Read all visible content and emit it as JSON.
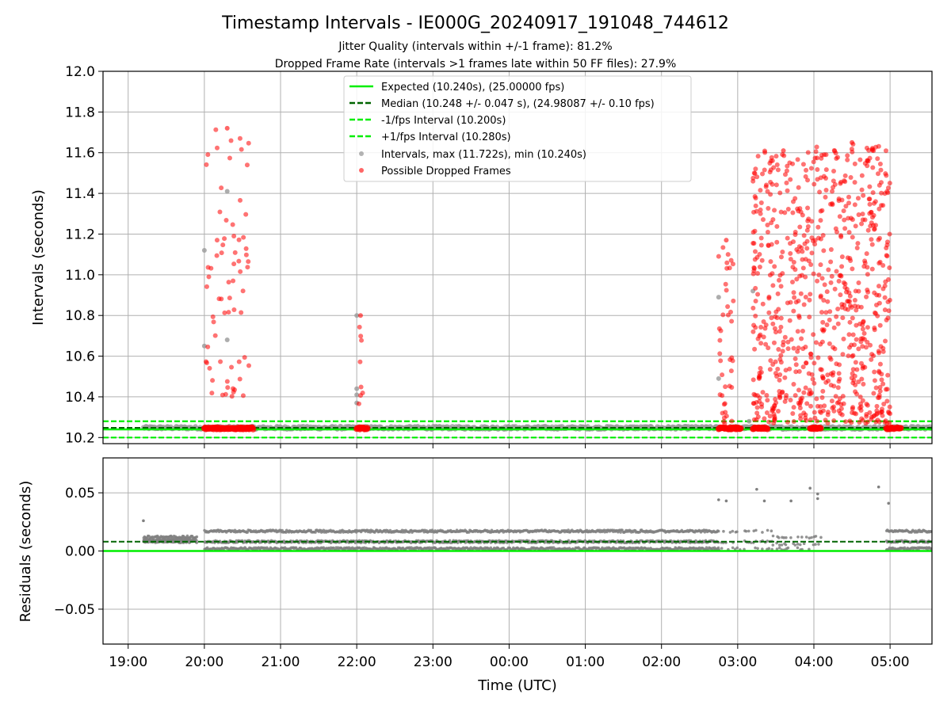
{
  "chart_data": [
    {
      "type": "scatter",
      "title": "Timestamp Intervals - IE000G_20240917_191048_744612",
      "subtitle_lines": [
        "Jitter Quality (intervals within +/-1 frame): 81.2%",
        "Dropped Frame Rate (intervals >1 frames late within 50 FF files): 27.9%"
      ],
      "ylabel": "Intervals (seconds)",
      "ylim": [
        10.17,
        12.0
      ],
      "yticks": [
        "10.2",
        "10.4",
        "10.6",
        "10.8",
        "11.0",
        "11.2",
        "11.4",
        "11.6",
        "11.8",
        "12.0"
      ],
      "grid": true,
      "legend_position": "top-center",
      "legend": [
        "Expected (10.240s), (25.00000 fps)",
        "Median (10.248 +/- 0.047 s), (24.98087 +/- 0.10 fps)",
        "-1/fps Interval (10.200s)",
        "+1/fps Interval (10.280s)",
        "Intervals, max (11.722s), min (10.240s)",
        "Possible Dropped Frames"
      ],
      "reference_lines": {
        "expected": 10.24,
        "median": 10.248,
        "minus_one_frame": 10.2,
        "plus_one_frame": 10.28
      },
      "colors": {
        "expected": "#00ee00",
        "median": "#006400",
        "bounds": "#00ee00",
        "intervals": "#999999",
        "dropped": "#ff0000"
      },
      "dropped_clusters": [
        {
          "x_start": 20.0,
          "x_end": 20.6,
          "y_min": 10.4,
          "y_max": 11.72,
          "count": 70
        },
        {
          "x_start": 22.0,
          "x_end": 22.1,
          "y_min": 10.34,
          "y_max": 10.8,
          "count": 8
        },
        {
          "x_start": 26.75,
          "x_end": 26.95,
          "y_min": 10.27,
          "y_max": 11.17,
          "count": 40
        },
        {
          "x_start": 27.2,
          "x_end": 28.0,
          "y_min": 10.27,
          "y_max": 11.61,
          "count": 330
        },
        {
          "x_start": 28.0,
          "x_end": 29.0,
          "y_min": 10.27,
          "y_max": 11.65,
          "count": 440
        }
      ],
      "baseline_dropped_clusters": [
        {
          "x_start": 20.0,
          "x_end": 20.65,
          "y": 10.245
        },
        {
          "x_start": 22.0,
          "x_end": 22.15,
          "y": 10.245
        },
        {
          "x_start": 26.75,
          "x_end": 27.05,
          "y": 10.245
        },
        {
          "x_start": 27.2,
          "x_end": 27.4,
          "y": 10.245
        },
        {
          "x_start": 27.95,
          "x_end": 28.1,
          "y": 10.245
        },
        {
          "x_start": 28.95,
          "x_end": 29.15,
          "y": 10.245
        }
      ],
      "gray_outliers": [
        {
          "x": 20.0,
          "y": 11.12
        },
        {
          "x": 20.0,
          "y": 10.65
        },
        {
          "x": 20.3,
          "y": 11.41
        },
        {
          "x": 20.3,
          "y": 10.68
        },
        {
          "x": 22.0,
          "y": 10.44
        },
        {
          "x": 22.0,
          "y": 10.41
        },
        {
          "x": 22.0,
          "y": 10.37
        },
        {
          "x": 22.0,
          "y": 10.8
        },
        {
          "x": 26.75,
          "y": 10.89
        },
        {
          "x": 26.75,
          "y": 10.49
        },
        {
          "x": 27.2,
          "y": 10.92
        },
        {
          "x": 27.15,
          "y": 10.28
        }
      ]
    },
    {
      "type": "scatter",
      "xlabel": "Time (UTC)",
      "ylabel": "Residuals (seconds)",
      "ylim": [
        -0.08,
        0.08
      ],
      "yticks": [
        "−0.05",
        "0.00",
        "0.05"
      ],
      "ytick_values": [
        -0.05,
        0.0,
        0.05
      ],
      "x_range_hours": [
        18.67,
        29.55
      ],
      "xticks": [
        "19:00",
        "20:00",
        "21:00",
        "22:00",
        "23:00",
        "00:00",
        "01:00",
        "02:00",
        "03:00",
        "04:00",
        "05:00"
      ],
      "reference_lines": {
        "expected": 0.0,
        "median": 0.008
      },
      "residual_segments": [
        {
          "x_start": 19.2,
          "x_end": 19.9,
          "band": [
            0.008,
            0.012
          ],
          "sparse": false
        },
        {
          "x_start": 20.0,
          "x_end": 26.75,
          "band": [
            0.002,
            0.017
          ],
          "sparse": false
        },
        {
          "x_start": 26.75,
          "x_end": 27.45,
          "band": [
            0.002,
            0.017
          ],
          "sparse": true
        },
        {
          "x_start": 27.45,
          "x_end": 28.1,
          "band": [
            0.002,
            0.012
          ],
          "sparse": true
        },
        {
          "x_start": 28.95,
          "x_end": 29.55,
          "band": [
            0.002,
            0.017
          ],
          "sparse": false
        }
      ],
      "residual_outliers": [
        {
          "x": 19.2,
          "y": 0.026
        },
        {
          "x": 26.75,
          "y": 0.044
        },
        {
          "x": 26.85,
          "y": 0.043
        },
        {
          "x": 27.35,
          "y": 0.043
        },
        {
          "x": 27.25,
          "y": 0.053
        },
        {
          "x": 27.7,
          "y": 0.043
        },
        {
          "x": 27.95,
          "y": 0.054
        },
        {
          "x": 28.05,
          "y": 0.049
        },
        {
          "x": 28.05,
          "y": 0.045
        },
        {
          "x": 28.85,
          "y": 0.055
        },
        {
          "x": 28.98,
          "y": 0.041
        }
      ]
    }
  ]
}
